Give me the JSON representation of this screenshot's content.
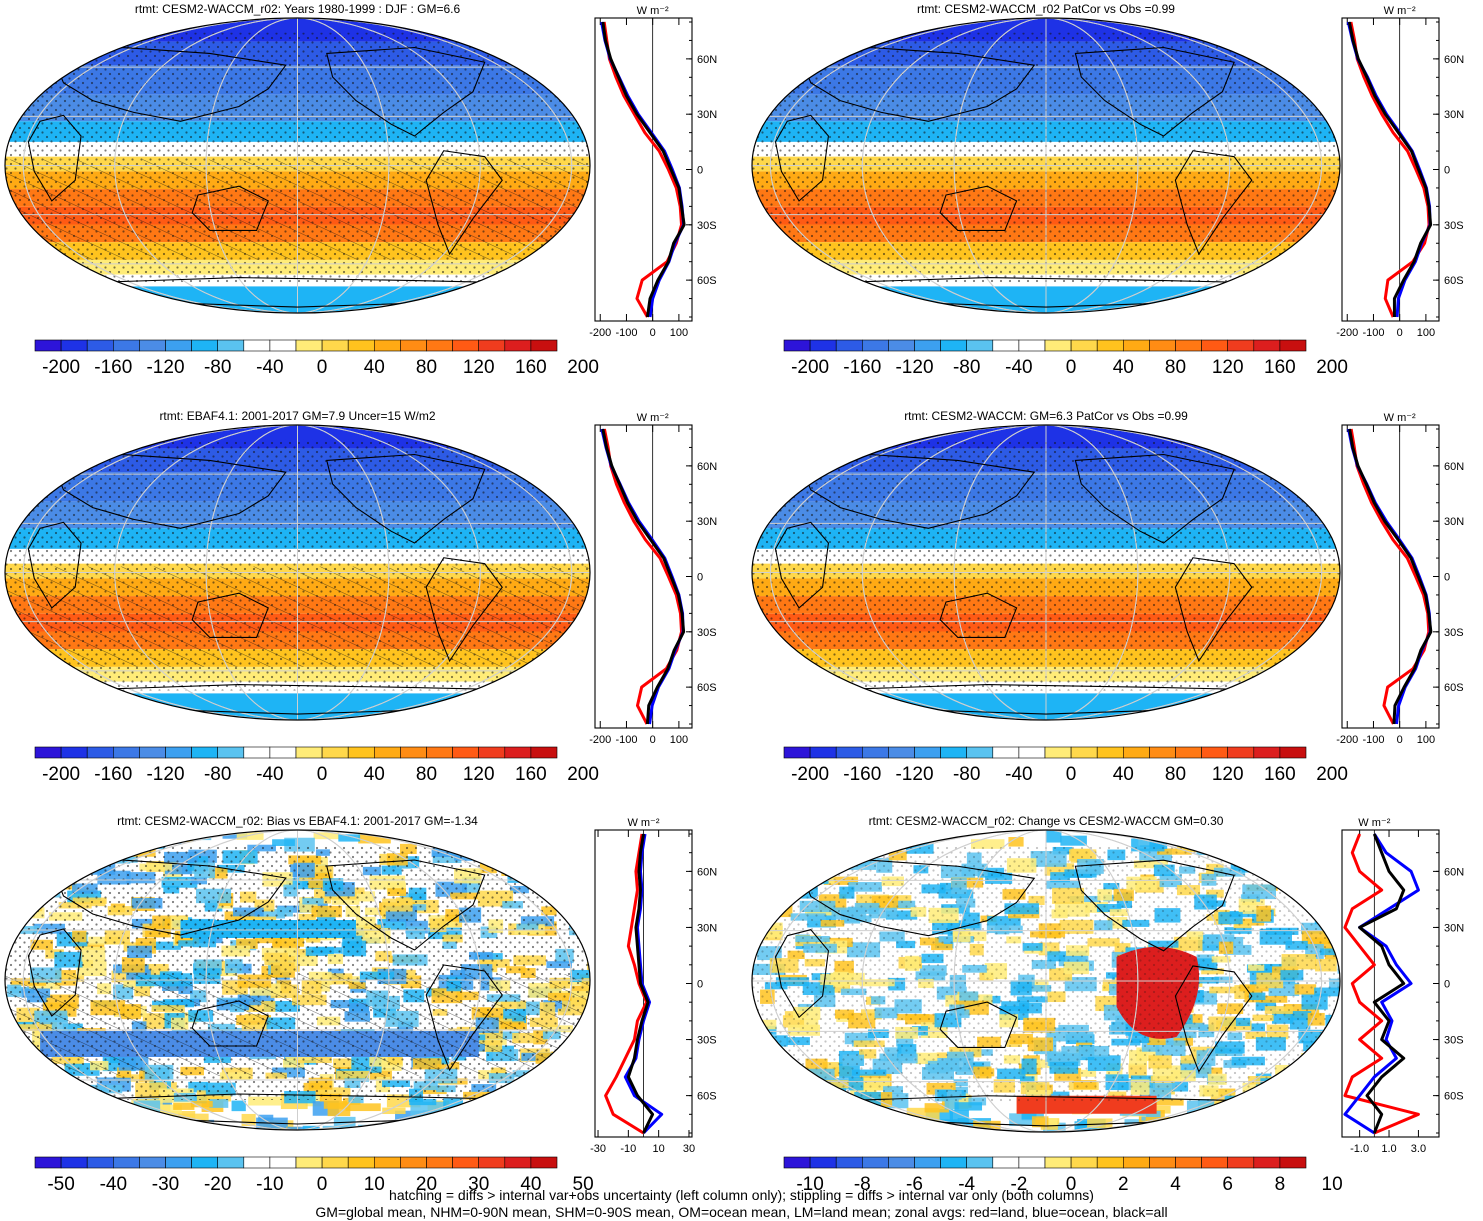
{
  "footer": {
    "line1": "hatching = diffs > internal var+obs uncertainty (left column only); stippling = diffs > internal var only (both columns)",
    "line2": "GM=global mean, NHM=0-90N mean, SHM=0-90S mean, OM=ocean mean, LM=land mean; zonal avgs: red=land, blue=ocean, black=all"
  },
  "colors": {
    "land": "#ff0000",
    "ocean": "#0000ff",
    "all": "#000000",
    "coastline": "#000000",
    "gridline": "#cfcfcf",
    "palette": [
      "#2d14d9",
      "#1e32e6",
      "#2d5be6",
      "#3c78e6",
      "#4b8ce6",
      "#3ca0f0",
      "#1eb4f5",
      "#5ac3f0",
      "#ffffff",
      "#ffffff",
      "#ffec78",
      "#ffd84b",
      "#ffc31e",
      "#ffaa14",
      "#ff8c14",
      "#ff7814",
      "#ff5a14",
      "#f03c1e",
      "#dc1e1e",
      "#c80f0f"
    ]
  },
  "chart_data": [
    {
      "type": "heatmap",
      "title": "rtmt: CESM2-WACCM_r02: Years 1980-1999 : DJF : GM=6.6",
      "colorbar": {
        "labels": [
          "-200",
          "-160",
          "-120",
          "-80",
          "-40",
          "0",
          "40",
          "80",
          "120",
          "160",
          "200"
        ]
      },
      "map_style": "mean",
      "hatching": true,
      "zonal": {
        "units": "W m⁻²",
        "lat_labels": [
          "60N",
          "30N",
          "0",
          "30S",
          "60S"
        ],
        "x_ticks": [
          "-200",
          "-100",
          "0",
          "100"
        ],
        "xlim": [
          -220,
          150
        ],
        "lat": [
          80,
          70,
          60,
          50,
          40,
          30,
          20,
          10,
          0,
          -10,
          -20,
          -30,
          -40,
          -50,
          -60,
          -70,
          -80
        ],
        "series": [
          {
            "key": "all",
            "values": [
              -190,
              -180,
              -160,
              -130,
              -100,
              -60,
              -10,
              40,
              70,
              100,
              110,
              120,
              80,
              60,
              20,
              -10,
              -20
            ]
          },
          {
            "key": "ocean",
            "values": [
              -195,
              -182,
              -162,
              -128,
              -95,
              -55,
              -5,
              45,
              75,
              102,
              112,
              118,
              85,
              62,
              25,
              0,
              -10
            ]
          },
          {
            "key": "land",
            "values": [
              -185,
              -175,
              -165,
              -140,
              -110,
              -70,
              -30,
              25,
              60,
              90,
              105,
              110,
              90,
              55,
              -40,
              -60,
              -20
            ]
          }
        ]
      }
    },
    {
      "type": "heatmap",
      "title": "rtmt: CESM2-WACCM_r02 PatCor vs Obs =0.99",
      "colorbar": {
        "labels": [
          "-200",
          "-160",
          "-120",
          "-80",
          "-40",
          "0",
          "40",
          "80",
          "120",
          "160",
          "200"
        ]
      },
      "map_style": "mean",
      "hatching": false,
      "zonal": {
        "units": "W m⁻²",
        "lat_labels": [
          "60N",
          "30N",
          "0",
          "30S",
          "60S"
        ],
        "x_ticks": [
          "-200",
          "-100",
          "0",
          "100"
        ],
        "xlim": [
          -220,
          150
        ],
        "lat": [
          80,
          70,
          60,
          50,
          40,
          30,
          20,
          10,
          0,
          -10,
          -20,
          -30,
          -40,
          -50,
          -60,
          -70,
          -80
        ],
        "series": [
          {
            "key": "all",
            "values": [
              -192,
              -178,
              -158,
              -125,
              -95,
              -55,
              -5,
              45,
              72,
              100,
              112,
              118,
              80,
              55,
              15,
              -20,
              -20
            ]
          },
          {
            "key": "ocean",
            "values": [
              -196,
              -180,
              -160,
              -122,
              -90,
              -50,
              0,
              48,
              76,
              102,
              114,
              116,
              84,
              60,
              20,
              -5,
              -10
            ]
          },
          {
            "key": "land",
            "values": [
              -186,
              -172,
              -162,
              -136,
              -105,
              -68,
              -25,
              30,
              62,
              92,
              108,
              112,
              95,
              50,
              -45,
              -55,
              -25
            ]
          }
        ]
      }
    },
    {
      "type": "heatmap",
      "title": "rtmt: EBAF4.1: 2001-2017 GM=7.9 Uncer=15 W/m2",
      "colorbar": {
        "labels": [
          "-200",
          "-160",
          "-120",
          "-80",
          "-40",
          "0",
          "40",
          "80",
          "120",
          "160",
          "200"
        ]
      },
      "map_style": "mean",
      "hatching": true,
      "zonal": {
        "units": "W m⁻²",
        "lat_labels": [
          "60N",
          "30N",
          "0",
          "30S",
          "60S"
        ],
        "x_ticks": [
          "-200",
          "-100",
          "0",
          "100"
        ],
        "xlim": [
          -220,
          150
        ],
        "lat": [
          80,
          70,
          60,
          50,
          40,
          30,
          20,
          10,
          0,
          -10,
          -20,
          -30,
          -40,
          -50,
          -60,
          -70,
          -80
        ],
        "series": [
          {
            "key": "all",
            "values": [
              -190,
              -176,
              -156,
              -126,
              -96,
              -58,
              -8,
              42,
              70,
              98,
              112,
              118,
              82,
              58,
              18,
              -15,
              -20
            ]
          },
          {
            "key": "ocean",
            "values": [
              -194,
              -178,
              -158,
              -124,
              -92,
              -52,
              -2,
              46,
              74,
              100,
              114,
              116,
              86,
              62,
              22,
              -2,
              -12
            ]
          },
          {
            "key": "land",
            "values": [
              -184,
              -170,
              -160,
              -138,
              -108,
              -72,
              -28,
              28,
              60,
              90,
              106,
              110,
              92,
              52,
              -42,
              -58,
              -22
            ]
          }
        ]
      }
    },
    {
      "type": "heatmap",
      "title": "rtmt: CESM2-WACCM: GM=6.3 PatCor vs Obs =0.99",
      "colorbar": {
        "labels": [
          "-200",
          "-160",
          "-120",
          "-80",
          "-40",
          "0",
          "40",
          "80",
          "120",
          "160",
          "200"
        ]
      },
      "map_style": "mean",
      "hatching": false,
      "zonal": {
        "units": "W m⁻²",
        "lat_labels": [
          "60N",
          "30N",
          "0",
          "30S",
          "60S"
        ],
        "x_ticks": [
          "-200",
          "-100",
          "0",
          "100"
        ],
        "xlim": [
          -220,
          150
        ],
        "lat": [
          80,
          70,
          60,
          50,
          40,
          30,
          20,
          10,
          0,
          -10,
          -20,
          -30,
          -40,
          -50,
          -60,
          -70,
          -80
        ],
        "series": [
          {
            "key": "all",
            "values": [
              -191,
              -179,
              -159,
              -127,
              -97,
              -57,
              -6,
              43,
              71,
              99,
              111,
              119,
              81,
              57,
              17,
              -18,
              -22
            ]
          },
          {
            "key": "ocean",
            "values": [
              -195,
              -181,
              -161,
              -125,
              -93,
              -51,
              -1,
              47,
              75,
              101,
              113,
              117,
              85,
              61,
              21,
              -4,
              -12
            ]
          },
          {
            "key": "land",
            "values": [
              -185,
              -173,
              -163,
              -137,
              -107,
              -69,
              -26,
              29,
              61,
              91,
              107,
              111,
              93,
              51,
              -46,
              -60,
              -24
            ]
          }
        ]
      }
    },
    {
      "type": "heatmap",
      "title": "rtmt: CESM2-WACCM_r02: Bias vs EBAF4.1: 2001-2017 GM=-1.34",
      "colorbar": {
        "labels": [
          "-50",
          "-40",
          "-30",
          "-20",
          "-10",
          "0",
          "10",
          "20",
          "30",
          "40",
          "50"
        ]
      },
      "map_style": "bias",
      "hatching": true,
      "zonal": {
        "units": "W m⁻²",
        "lat_labels": [
          "60N",
          "30N",
          "0",
          "30S",
          "60S"
        ],
        "x_ticks": [
          "-30",
          "-10",
          "10",
          "30"
        ],
        "xlim": [
          -32,
          32
        ],
        "lat": [
          80,
          70,
          60,
          50,
          40,
          30,
          20,
          10,
          0,
          -10,
          -20,
          -30,
          -40,
          -50,
          -60,
          -70,
          -80
        ],
        "series": [
          {
            "key": "all",
            "values": [
              0,
              -2,
              -3,
              -2,
              -3,
              -5,
              -4,
              -3,
              -2,
              3,
              -1,
              -4,
              -6,
              -10,
              -4,
              6,
              0
            ]
          },
          {
            "key": "ocean",
            "values": [
              1,
              -1,
              -2,
              -1,
              -2,
              -4,
              -3,
              -2,
              -1,
              4,
              0,
              -3,
              -5,
              -12,
              -6,
              12,
              0
            ]
          },
          {
            "key": "land",
            "values": [
              -1,
              -3,
              -5,
              -4,
              -6,
              -8,
              -10,
              -6,
              -3,
              2,
              -4,
              -6,
              -12,
              -18,
              -25,
              -20,
              0
            ]
          }
        ]
      }
    },
    {
      "type": "heatmap",
      "title": "rtmt: CESM2-WACCM_r02: Change vs CESM2-WACCM GM=0.30",
      "colorbar": {
        "labels": [
          "-10",
          "-8",
          "-6",
          "-4",
          "-2",
          "0",
          "2",
          "4",
          "6",
          "8",
          "10"
        ]
      },
      "map_style": "change",
      "hatching": false,
      "zonal": {
        "units": "W m⁻²",
        "lat_labels": [
          "60N",
          "30N",
          "0",
          "30S",
          "60S"
        ],
        "x_ticks": [
          "-1.0",
          "1.0",
          "3.0"
        ],
        "xlim": [
          -2.2,
          4.4
        ],
        "lat": [
          80,
          70,
          60,
          50,
          40,
          30,
          20,
          10,
          0,
          -10,
          -20,
          -30,
          -40,
          -50,
          -60,
          -70,
          -80
        ],
        "series": [
          {
            "key": "all",
            "values": [
              0.0,
              0.5,
              1.0,
              2.0,
              1.5,
              -1.0,
              0.5,
              1.0,
              2.0,
              0.0,
              1.0,
              0.5,
              2.0,
              0.5,
              -0.5,
              0.5,
              0.0
            ]
          },
          {
            "key": "ocean",
            "values": [
              0.0,
              0.8,
              2.5,
              3.0,
              1.0,
              -1.0,
              0.8,
              1.5,
              2.5,
              0.5,
              1.2,
              0.8,
              1.5,
              0.0,
              -1.0,
              -2.0,
              0.0
            ]
          },
          {
            "key": "land",
            "values": [
              -1.0,
              -1.5,
              -1.0,
              0.5,
              -1.5,
              -2.0,
              -1.0,
              0.0,
              -1.5,
              -1.0,
              0.5,
              -1.0,
              0.5,
              -1.5,
              -2.0,
              3.0,
              0.0
            ]
          }
        ]
      }
    }
  ]
}
